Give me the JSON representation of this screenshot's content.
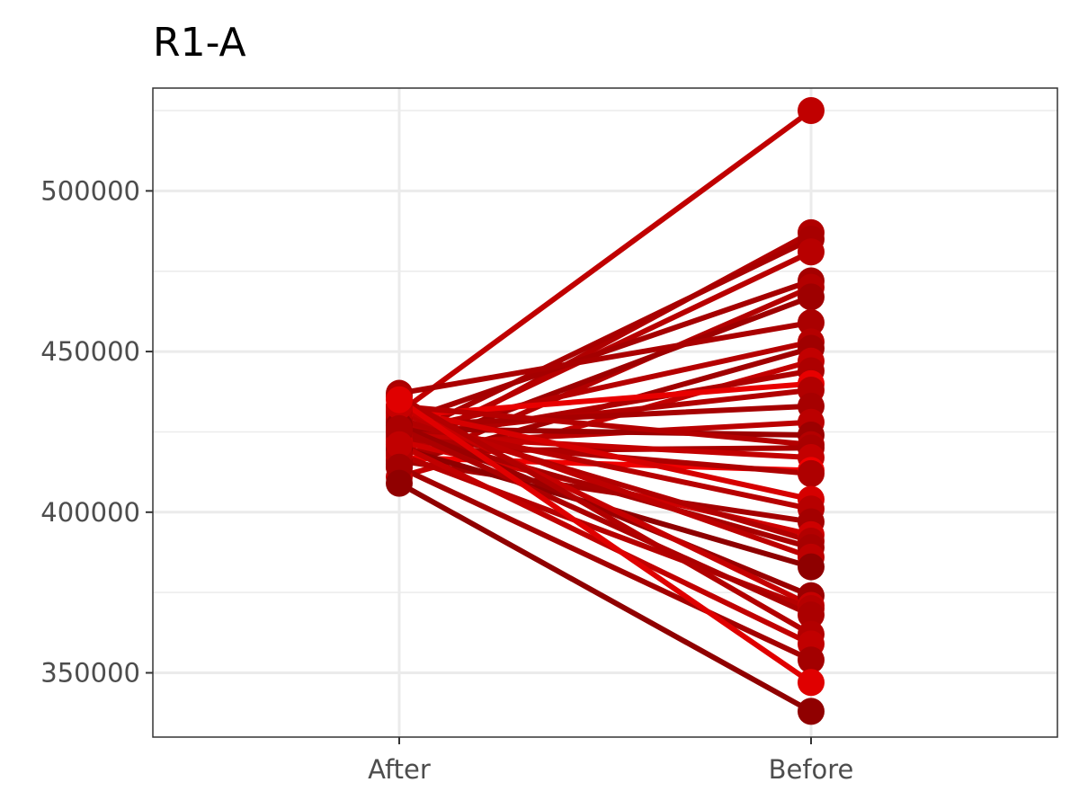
{
  "chart_data": {
    "type": "line",
    "title": "R1-A",
    "xlabel": "",
    "ylabel": "",
    "categories": [
      "After",
      "Before"
    ],
    "yticks": [
      350000,
      400000,
      450000,
      500000
    ],
    "ylim": [
      330000,
      532000
    ],
    "grid": true,
    "legend": "none",
    "series": [
      {
        "values": [
          431000,
          525000
        ],
        "color": "#c00000"
      },
      {
        "values": [
          418000,
          487000
        ],
        "color": "#b00000"
      },
      {
        "values": [
          423000,
          485000
        ],
        "color": "#a80000"
      },
      {
        "values": [
          420000,
          481000
        ],
        "color": "#b80000"
      },
      {
        "values": [
          428000,
          472000
        ],
        "color": "#a50000"
      },
      {
        "values": [
          414000,
          470000
        ],
        "color": "#b30000"
      },
      {
        "values": [
          419000,
          467000
        ],
        "color": "#9e0000"
      },
      {
        "values": [
          437000,
          459000
        ],
        "color": "#aa0000"
      },
      {
        "values": [
          425000,
          453000
        ],
        "color": "#b50000"
      },
      {
        "values": [
          415000,
          451000
        ],
        "color": "#a00000"
      },
      {
        "values": [
          411000,
          447000
        ],
        "color": "#c20000"
      },
      {
        "values": [
          422000,
          444000
        ],
        "color": "#ad0000"
      },
      {
        "values": [
          430000,
          440000
        ],
        "color": "#e80000"
      },
      {
        "values": [
          424000,
          438000
        ],
        "color": "#b10000"
      },
      {
        "values": [
          427000,
          433000
        ],
        "color": "#a60000"
      },
      {
        "values": [
          421000,
          428000
        ],
        "color": "#bb0000"
      },
      {
        "values": [
          426000,
          424000
        ],
        "color": "#9c0000"
      },
      {
        "values": [
          433000,
          421000
        ],
        "color": "#b40000"
      },
      {
        "values": [
          419000,
          420000
        ],
        "color": "#a90000"
      },
      {
        "values": [
          424000,
          417000
        ],
        "color": "#c30000"
      },
      {
        "values": [
          417000,
          413000
        ],
        "color": "#f00000"
      },
      {
        "values": [
          423000,
          412000
        ],
        "color": "#ae0000"
      },
      {
        "values": [
          432000,
          404000
        ],
        "color": "#d60000"
      },
      {
        "values": [
          428000,
          401000
        ],
        "color": "#b70000"
      },
      {
        "values": [
          416000,
          397000
        ],
        "color": "#a40000"
      },
      {
        "values": [
          422000,
          393000
        ],
        "color": "#ce0000"
      },
      {
        "values": [
          429000,
          391000
        ],
        "color": "#b20000"
      },
      {
        "values": [
          425000,
          389000
        ],
        "color": "#a70000"
      },
      {
        "values": [
          431000,
          386000
        ],
        "color": "#bd0000"
      },
      {
        "values": [
          420000,
          383000
        ],
        "color": "#8e0000"
      },
      {
        "values": [
          427000,
          374000
        ],
        "color": "#9a0000"
      },
      {
        "values": [
          433000,
          371000
        ],
        "color": "#c60000"
      },
      {
        "values": [
          418000,
          370000
        ],
        "color": "#b60000"
      },
      {
        "values": [
          426000,
          368000
        ],
        "color": "#ab0000"
      },
      {
        "values": [
          436000,
          362000
        ],
        "color": "#b20000"
      },
      {
        "values": [
          421000,
          359000
        ],
        "color": "#c10000"
      },
      {
        "values": [
          414000,
          354000
        ],
        "color": "#a30000"
      },
      {
        "values": [
          435000,
          347000
        ],
        "color": "#e00000"
      },
      {
        "values": [
          409000,
          338000
        ],
        "color": "#900000"
      }
    ]
  }
}
